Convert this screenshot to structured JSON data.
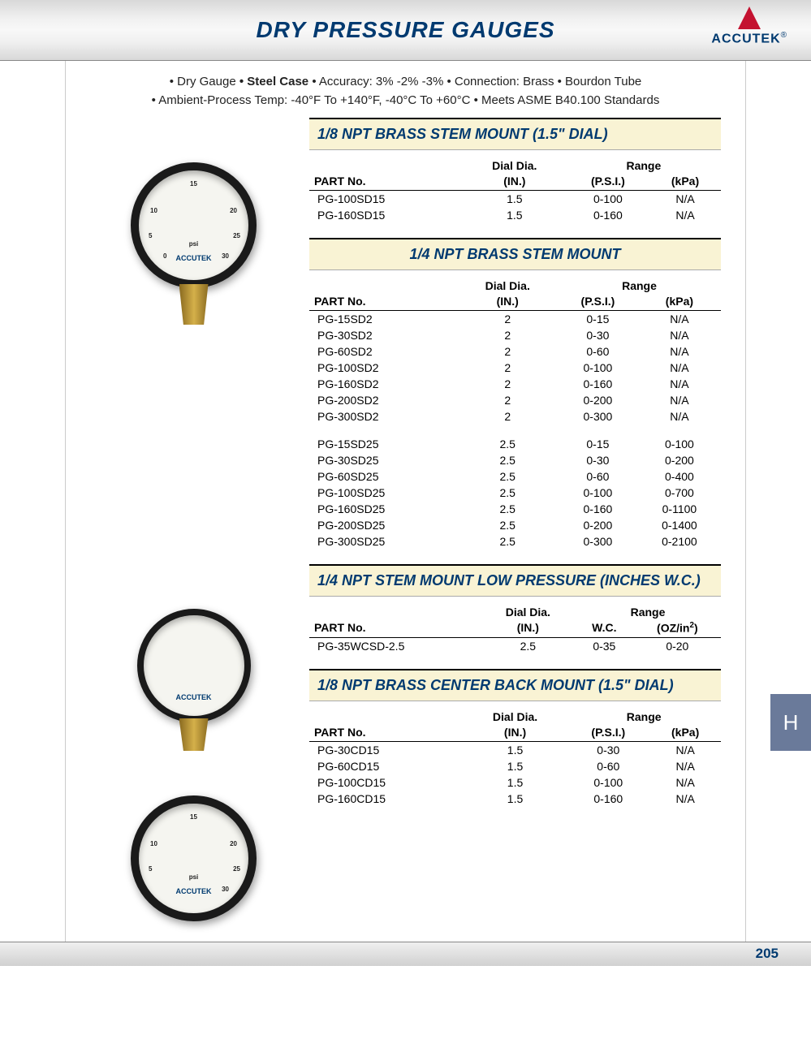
{
  "page": {
    "title": "DRY PRESSURE GAUGES",
    "brand": "ACCUTEK",
    "number": "205",
    "tab_letter": "H"
  },
  "specs": {
    "line1": "• Dry Gauge • Steel Case • Accuracy: 3% -2% -3% • Connection: Brass • Bourdon Tube",
    "line2": "• Ambient-Process Temp: -40°F To +140°F,  -40°C To +60°C • Meets ASME B40.100 Standards"
  },
  "columns_std": {
    "part": "PART No.",
    "dial_super": "Dial Dia.",
    "dial": "(IN.)",
    "range_super": "Range",
    "psi": "(P.S.I.)",
    "kpa": "(kPa)",
    "wc": "W.C.",
    "oz": "(OZ/in²)"
  },
  "sections": [
    {
      "title": "1/8 NPT BRASS STEM MOUNT (1.5\" DIAL)",
      "align": "left",
      "range_cols": [
        "psi",
        "kpa"
      ],
      "rows": [
        {
          "part": "PG-100SD15",
          "dial": "1.5",
          "c1": "0-100",
          "c2": "N/A"
        },
        {
          "part": "PG-160SD15",
          "dial": "1.5",
          "c1": "0-160",
          "c2": "N/A"
        }
      ]
    },
    {
      "title": "1/4 NPT BRASS STEM MOUNT",
      "align": "center",
      "range_cols": [
        "psi",
        "kpa"
      ],
      "rows": [
        {
          "part": "PG-15SD2",
          "dial": "2",
          "c1": "0-15",
          "c2": "N/A"
        },
        {
          "part": "PG-30SD2",
          "dial": "2",
          "c1": "0-30",
          "c2": "N/A"
        },
        {
          "part": "PG-60SD2",
          "dial": "2",
          "c1": "0-60",
          "c2": "N/A"
        },
        {
          "part": "PG-100SD2",
          "dial": "2",
          "c1": "0-100",
          "c2": "N/A"
        },
        {
          "part": "PG-160SD2",
          "dial": "2",
          "c1": "0-160",
          "c2": "N/A"
        },
        {
          "part": "PG-200SD2",
          "dial": "2",
          "c1": "0-200",
          "c2": "N/A"
        },
        {
          "part": "PG-300SD2",
          "dial": "2",
          "c1": "0-300",
          "c2": "N/A"
        },
        {
          "gap": true
        },
        {
          "part": "PG-15SD25",
          "dial": "2.5",
          "c1": "0-15",
          "c2": "0-100"
        },
        {
          "part": "PG-30SD25",
          "dial": "2.5",
          "c1": "0-30",
          "c2": "0-200"
        },
        {
          "part": "PG-60SD25",
          "dial": "2.5",
          "c1": "0-60",
          "c2": "0-400"
        },
        {
          "part": "PG-100SD25",
          "dial": "2.5",
          "c1": "0-100",
          "c2": "0-700"
        },
        {
          "part": "PG-160SD25",
          "dial": "2.5",
          "c1": "0-160",
          "c2": "0-1100"
        },
        {
          "part": "PG-200SD25",
          "dial": "2.5",
          "c1": "0-200",
          "c2": "0-1400"
        },
        {
          "part": "PG-300SD25",
          "dial": "2.5",
          "c1": "0-300",
          "c2": "0-2100"
        }
      ]
    },
    {
      "title": "1/4 NPT STEM MOUNT LOW PRESSURE (INCHES W.C.)",
      "align": "left",
      "range_cols": [
        "wc",
        "oz"
      ],
      "rows": [
        {
          "part": "PG-35WCSD-2.5",
          "dial": "2.5",
          "c1": "0-35",
          "c2": "0-20"
        }
      ]
    },
    {
      "title": "1/8 NPT BRASS CENTER BACK MOUNT (1.5\" DIAL)",
      "align": "left",
      "range_cols": [
        "psi",
        "kpa"
      ],
      "rows": [
        {
          "part": "PG-30CD15",
          "dial": "1.5",
          "c1": "0-30",
          "c2": "N/A"
        },
        {
          "part": "PG-60CD15",
          "dial": "1.5",
          "c1": "0-60",
          "c2": "N/A"
        },
        {
          "part": "PG-100CD15",
          "dial": "1.5",
          "c1": "0-100",
          "c2": "N/A"
        },
        {
          "part": "PG-160CD15",
          "dial": "1.5",
          "c1": "0-160",
          "c2": "N/A"
        }
      ]
    }
  ],
  "colors": {
    "header_bg": "#f9f3d4",
    "brand_blue": "#003a70",
    "brand_red": "#c41230",
    "tab_bg": "#6a7a9a"
  }
}
